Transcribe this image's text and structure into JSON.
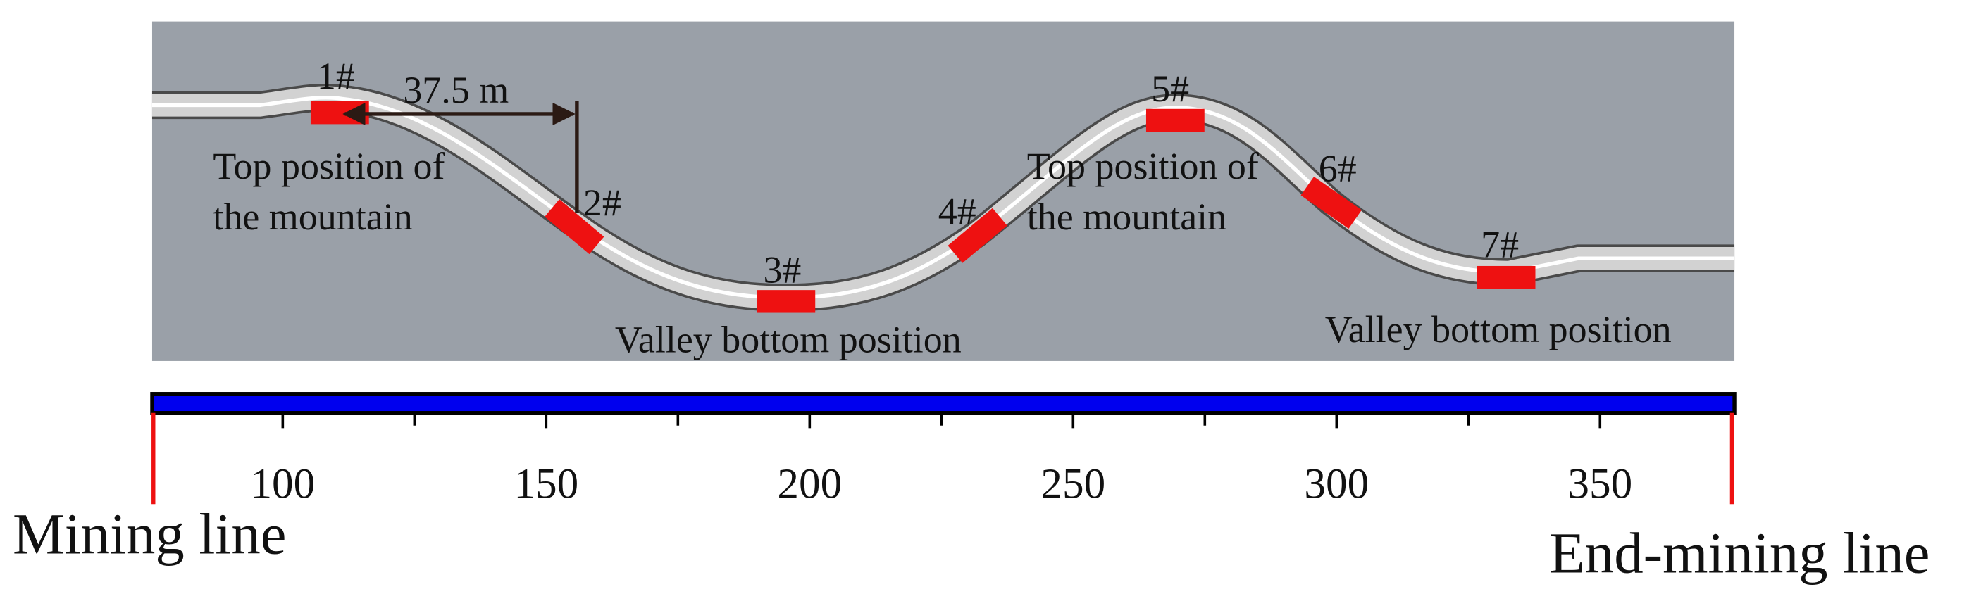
{
  "markers": [
    "1#",
    "2#",
    "3#",
    "4#",
    "5#",
    "6#",
    "7#"
  ],
  "distance_label": "37.5 m",
  "annotations": [
    {
      "lines": [
        "Top position of",
        "the mountain"
      ]
    },
    {
      "lines": [
        "Valley bottom position"
      ]
    },
    {
      "lines": [
        "Top position of",
        "the mountain"
      ]
    },
    {
      "lines": [
        "Valley bottom position"
      ]
    }
  ],
  "scale": {
    "ticks": [
      100,
      150,
      200,
      250,
      300,
      350
    ]
  },
  "mining_line": "Mining line",
  "end_mining_line": "End-mining line"
}
